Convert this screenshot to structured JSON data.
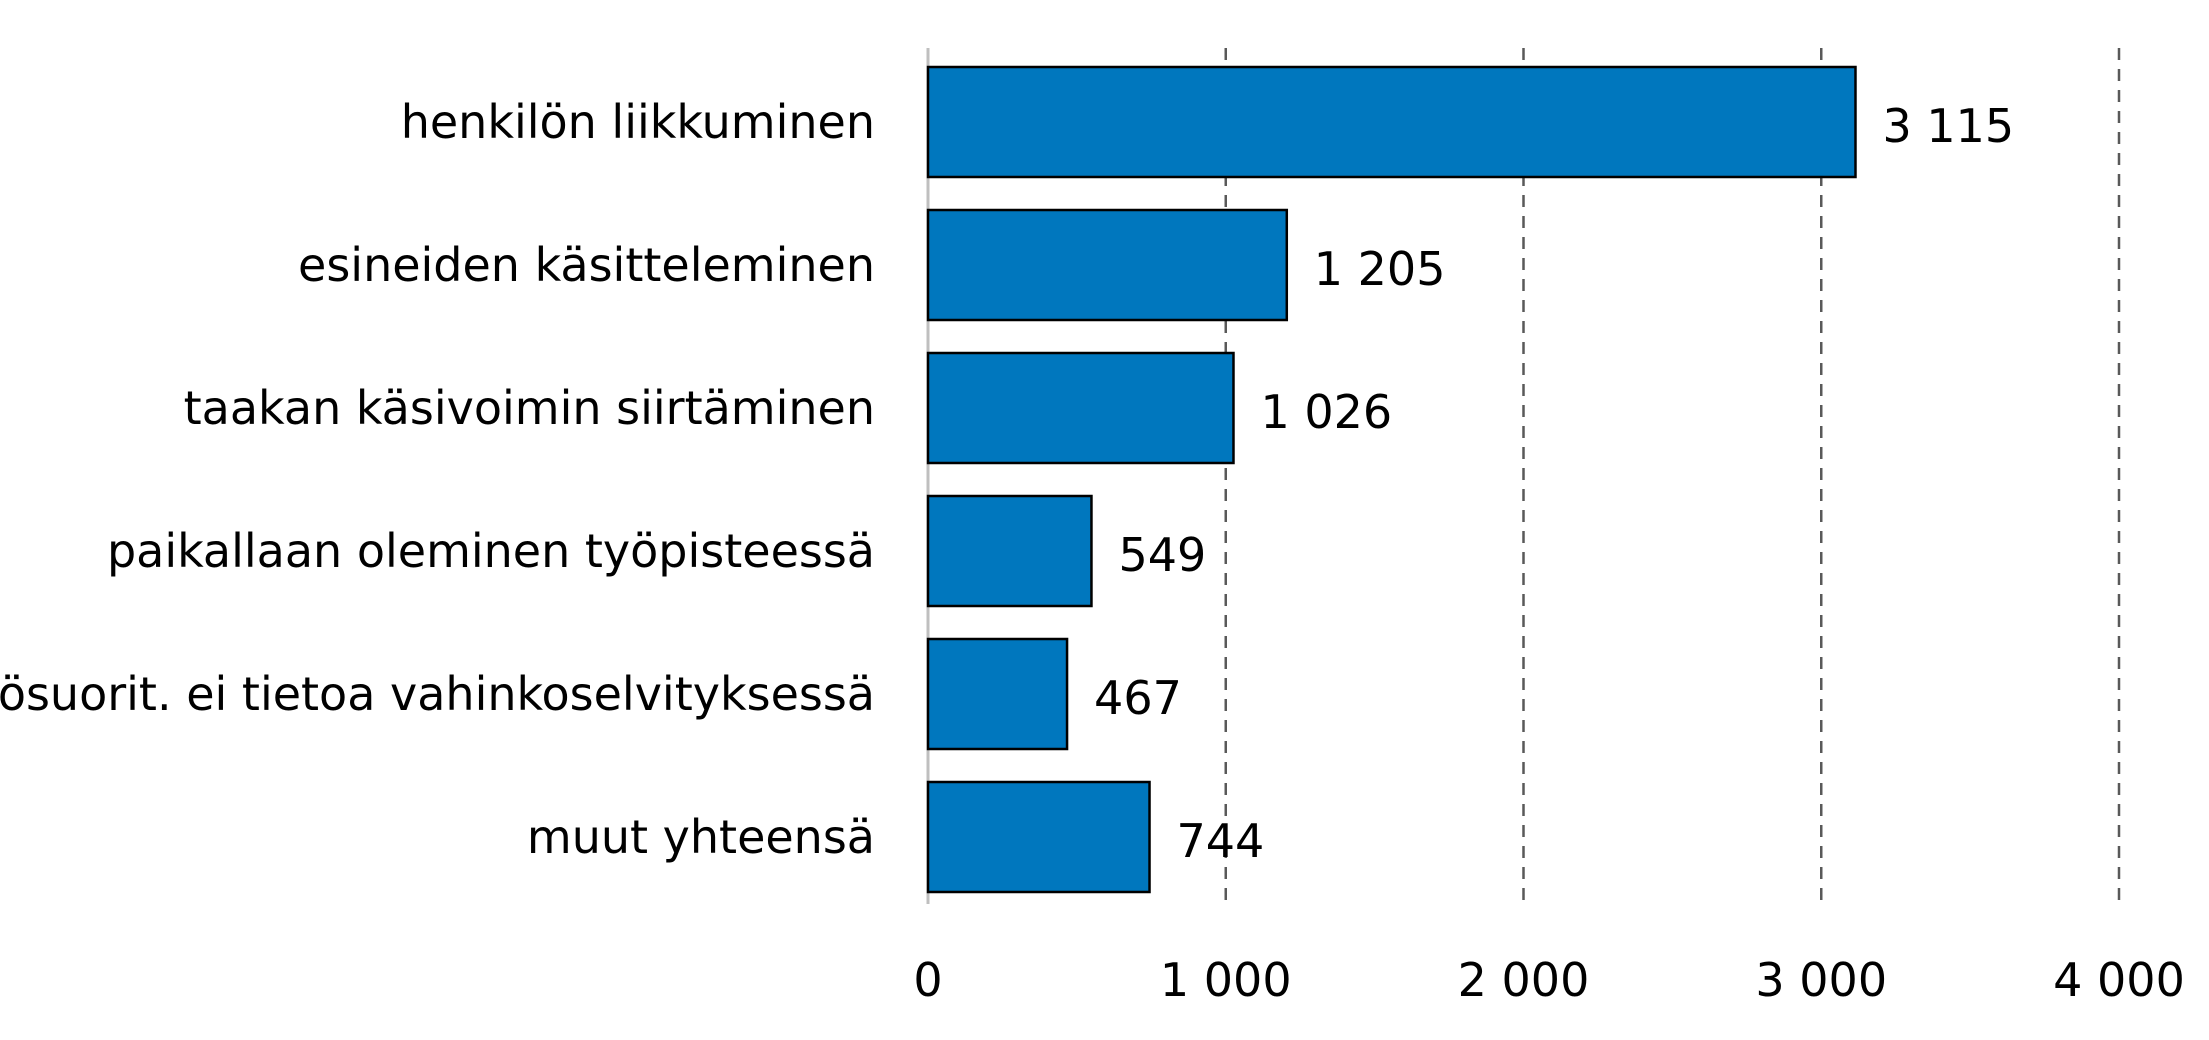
{
  "chart_data": {
    "type": "bar",
    "orientation": "horizontal",
    "title": "",
    "xlabel": "",
    "ylabel": "",
    "categories": [
      "henkilön liikkuminen",
      "esineiden käsitteleminen",
      "taakan käsivoimin siirtäminen",
      "paikallaan oleminen työpisteessä",
      "työsuorit. ei tietoa vahinkoselvityksessä",
      "muut yhteensä"
    ],
    "values": [
      3115,
      1205,
      1026,
      549,
      467,
      744
    ],
    "value_labels": [
      "3 115",
      "1 205",
      "1 026",
      "549",
      "467",
      "744"
    ],
    "xlim": [
      0,
      4000
    ],
    "ticks": [
      0,
      1000,
      2000,
      3000,
      4000
    ],
    "tick_labels": [
      "0",
      "1 000",
      "2 000",
      "3 000",
      "4 000"
    ],
    "grid": "vertical dashed",
    "legend": "none",
    "bar_color": "#0077BE"
  }
}
